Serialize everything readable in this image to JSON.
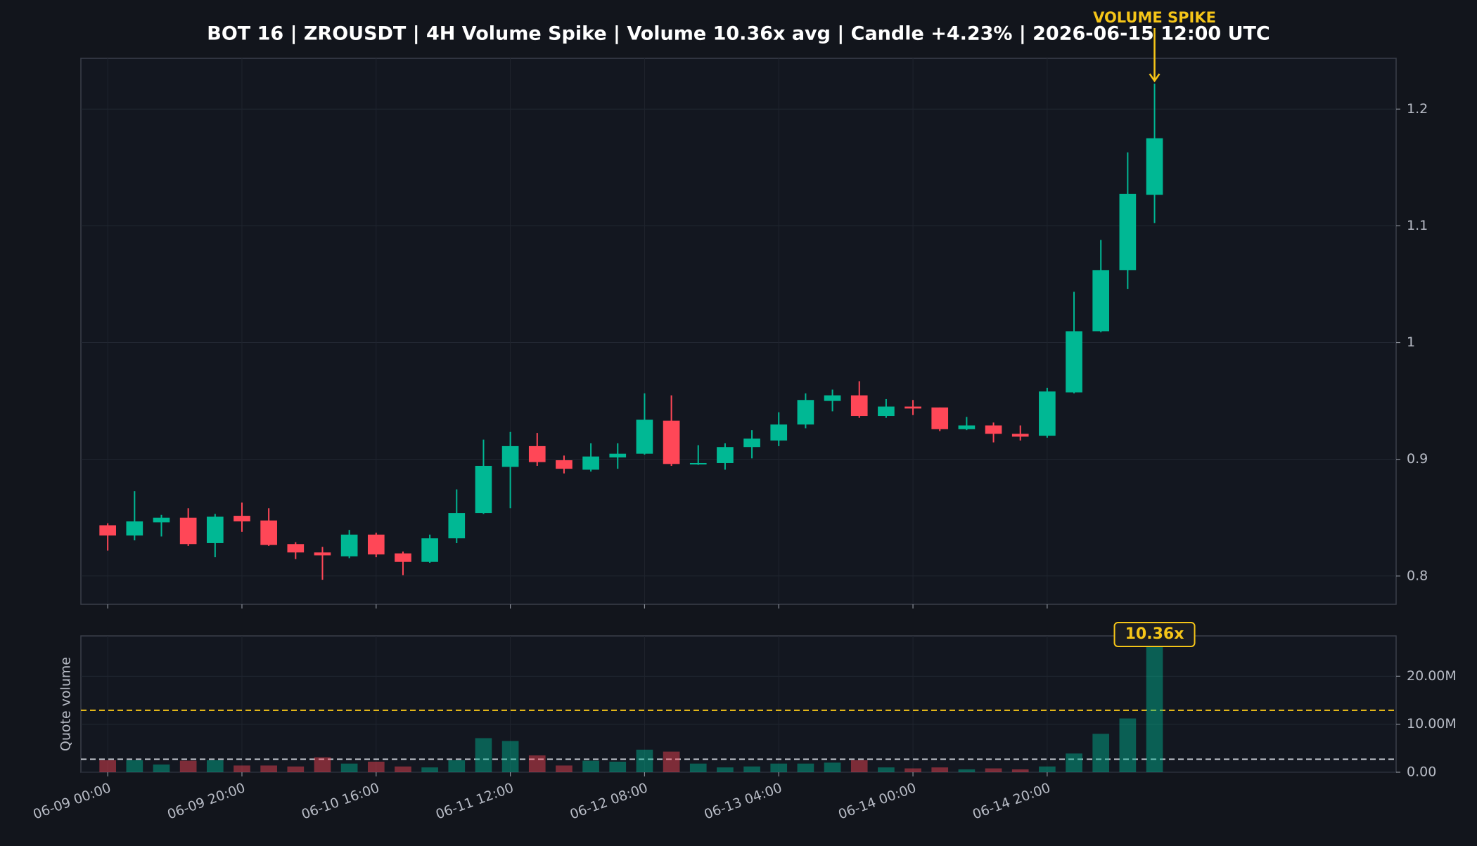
{
  "chart_data": {
    "type": "candlestick",
    "title": "BOT 16 | ZROUSDT | 4H Volume Spike | Volume 10.36x avg | Candle +4.23% | 2026-06-15 12:00 UTC",
    "categories": [
      "06-09 00:00",
      null,
      null,
      null,
      null,
      "06-09 20:00",
      null,
      null,
      null,
      null,
      "06-10 16:00",
      null,
      null,
      null,
      null,
      "06-11 12:00",
      null,
      null,
      null,
      null,
      "06-12 08:00",
      null,
      null,
      null,
      null,
      "06-13 04:00",
      null,
      null,
      null,
      null,
      "06-14 00:00",
      null,
      null,
      null,
      null,
      "06-14 20:00",
      null,
      null,
      null,
      null
    ],
    "xlim": [
      -1,
      48
    ],
    "open": [
      0.8435,
      0.8347,
      0.846,
      0.85,
      0.8282,
      0.8516,
      0.8476,
      0.8274,
      0.8202,
      0.8169,
      0.8355,
      0.8194,
      0.8121,
      0.8323,
      0.854,
      0.8935,
      0.9113,
      0.8992,
      0.8911,
      0.9016,
      0.9048,
      0.9331,
      0.896,
      0.8968,
      0.9105,
      0.9161,
      0.9298,
      0.95,
      0.9548,
      0.9371,
      0.9452,
      0.9444,
      0.9258,
      0.929,
      0.9218,
      0.9202,
      0.9573,
      1.0097,
      1.0621,
      1.1266
    ],
    "high": [
      0.8452,
      0.8726,
      0.8524,
      0.8581,
      0.8532,
      0.8629,
      0.8581,
      0.829,
      0.825,
      0.8395,
      0.8371,
      0.821,
      0.8355,
      0.8742,
      0.9169,
      0.9234,
      0.9226,
      0.9032,
      0.9137,
      0.9137,
      0.9565,
      0.9548,
      0.9121,
      0.9137,
      0.925,
      0.9403,
      0.9565,
      0.9597,
      0.9669,
      0.9516,
      0.9508,
      0.9444,
      0.9363,
      0.9315,
      0.929,
      0.9613,
      1.0435,
      1.0879,
      1.1629,
      1.2218
    ],
    "low": [
      0.8218,
      0.8306,
      0.8339,
      0.8258,
      0.8161,
      0.8379,
      0.8258,
      0.8145,
      0.7968,
      0.8153,
      0.8161,
      0.8008,
      0.8113,
      0.8282,
      0.8532,
      0.8581,
      0.8944,
      0.8879,
      0.8895,
      0.8919,
      0.904,
      0.8944,
      0.8952,
      0.8911,
      0.9008,
      0.9113,
      0.9266,
      0.9411,
      0.9355,
      0.9355,
      0.9379,
      0.9242,
      0.925,
      0.9145,
      0.9161,
      0.9185,
      0.9565,
      1.0089,
      1.046,
      1.1024
    ],
    "close": [
      0.8347,
      0.8468,
      0.85,
      0.8274,
      0.8508,
      0.8468,
      0.8266,
      0.8202,
      0.8177,
      0.8355,
      0.8185,
      0.8121,
      0.8323,
      0.854,
      0.8944,
      0.9113,
      0.8976,
      0.8919,
      0.9024,
      0.9048,
      0.9339,
      0.896,
      0.8968,
      0.9105,
      0.9177,
      0.9298,
      0.9508,
      0.9548,
      0.9371,
      0.9452,
      0.9435,
      0.9258,
      0.929,
      0.9218,
      0.9194,
      0.9581,
      1.0097,
      1.0621,
      1.1274,
      1.175
    ],
    "up_color": "#00b894",
    "down_color": "#ff4757",
    "ylim": [
      0.7758,
      1.2435
    ],
    "yticks": [
      0.8,
      0.9,
      1,
      1.1,
      1.2
    ],
    "grid": true,
    "annotations": {
      "price": "VOLUME SPIKE",
      "volume": "10.36x",
      "color": "#f5c518"
    },
    "volume": {
      "ylabel": "Quote volume",
      "values": [
        2500000,
        2500000,
        1600000,
        2400000,
        2500000,
        1400000,
        1400000,
        1200000,
        3100000,
        1800000,
        2200000,
        1200000,
        1000000,
        2500000,
        7100000,
        6500000,
        3500000,
        1400000,
        2400000,
        2200000,
        4700000,
        4300000,
        1800000,
        1000000,
        1200000,
        1800000,
        1800000,
        2000000,
        2500000,
        1000000,
        800000,
        1000000,
        600000,
        800000,
        600000,
        1200000,
        3900000,
        8000000,
        11200000,
        27970000
      ],
      "ylim": [
        0,
        28400000
      ],
      "yticks": [
        {
          "value": 0,
          "label": "0.00"
        },
        {
          "value": 10000000,
          "label": "10.00M"
        },
        {
          "value": 20000000,
          "label": "20.00M"
        }
      ],
      "reference_lines": [
        {
          "value": 2700000,
          "color": "#c8ccd4"
        },
        {
          "value": 12900000,
          "color": "#f5c518"
        }
      ]
    }
  }
}
